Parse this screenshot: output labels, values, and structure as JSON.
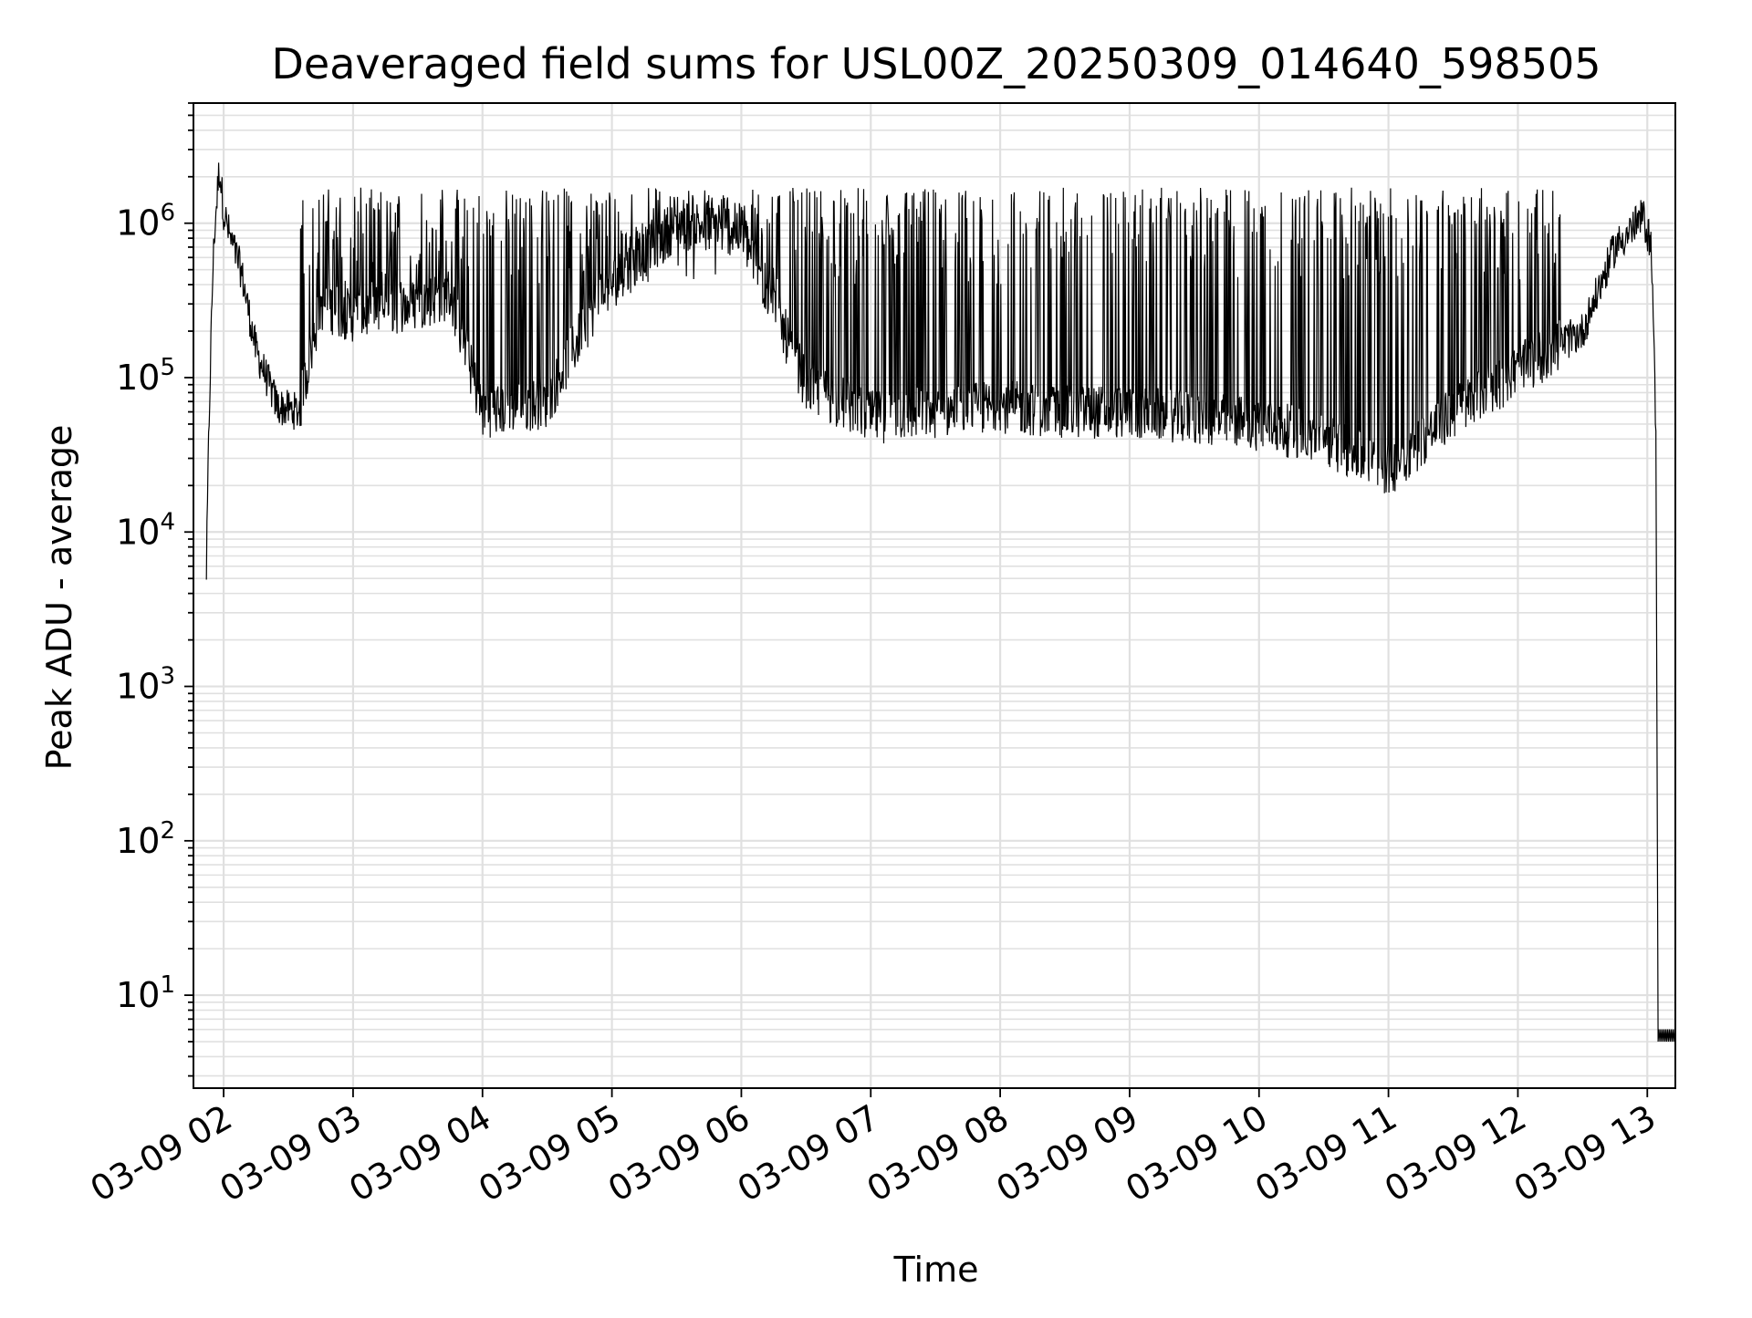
{
  "chart_data": {
    "type": "line",
    "title": "Deaveraged field sums for USL00Z_20250309_014640_598505",
    "xlabel": "Time",
    "ylabel": "Peak ADU - average",
    "yscale": "log",
    "ylim": [
      2.5,
      6000000
    ],
    "xlim": [
      "2025-03-09 01:46",
      "2025-03-09 13:13"
    ],
    "grid": true,
    "line_color": "#000000",
    "grid_color": "#e0e0e0",
    "x_ticks": [
      "03-09 02",
      "03-09 03",
      "03-09 04",
      "03-09 05",
      "03-09 06",
      "03-09 07",
      "03-09 08",
      "03-09 09",
      "03-09 10",
      "03-09 11",
      "03-09 12",
      "03-09 13"
    ],
    "y_ticks": [
      {
        "base": "10",
        "exp": "1"
      },
      {
        "base": "10",
        "exp": "2"
      },
      {
        "base": "10",
        "exp": "3"
      },
      {
        "base": "10",
        "exp": "4"
      },
      {
        "base": "10",
        "exp": "5"
      },
      {
        "base": "10",
        "exp": "6"
      }
    ],
    "series": [
      {
        "x": [
          "2025-03-09 01:52",
          "2025-03-09 01:53",
          "2025-03-09 01:54",
          "2025-03-09 01:55",
          "2025-03-09 01:56",
          "2025-03-09 01:58",
          "2025-03-09 02:00",
          "2025-03-09 02:03",
          "2025-03-09 02:08",
          "2025-03-09 02:15",
          "2025-03-09 02:25",
          "2025-03-09 02:35",
          "2025-03-09 02:45",
          "2025-03-09 03:00",
          "2025-03-09 03:30",
          "2025-03-09 03:45",
          "2025-03-09 04:00",
          "2025-03-09 04:30",
          "2025-03-09 04:55",
          "2025-03-09 05:30",
          "2025-03-09 06:00",
          "2025-03-09 06:30",
          "2025-03-09 07:00",
          "2025-03-09 07:30",
          "2025-03-09 08:00",
          "2025-03-09 08:30",
          "2025-03-09 09:00",
          "2025-03-09 09:30",
          "2025-03-09 10:00",
          "2025-03-09 10:30",
          "2025-03-09 11:00",
          "2025-03-09 11:30",
          "2025-03-09 12:00",
          "2025-03-09 12:30",
          "2025-03-09 12:45",
          "2025-03-09 12:58",
          "2025-03-09 13:02",
          "2025-03-09 13:04",
          "2025-03-09 13:05",
          "2025-03-09 13:13"
        ],
        "y": [
          5500,
          35000,
          150000,
          500000,
          1000000,
          2300000,
          1200000,
          800000,
          500000,
          150000,
          65000,
          60000,
          300000,
          250000,
          300000,
          350000,
          60000,
          70000,
          350000,
          1000000,
          900000,
          90000,
          55000,
          60000,
          65000,
          60000,
          60000,
          55000,
          50000,
          40000,
          25000,
          60000,
          110000,
          200000,
          700000,
          1100000,
          700000,
          40000,
          5,
          5
        ]
      }
    ]
  }
}
